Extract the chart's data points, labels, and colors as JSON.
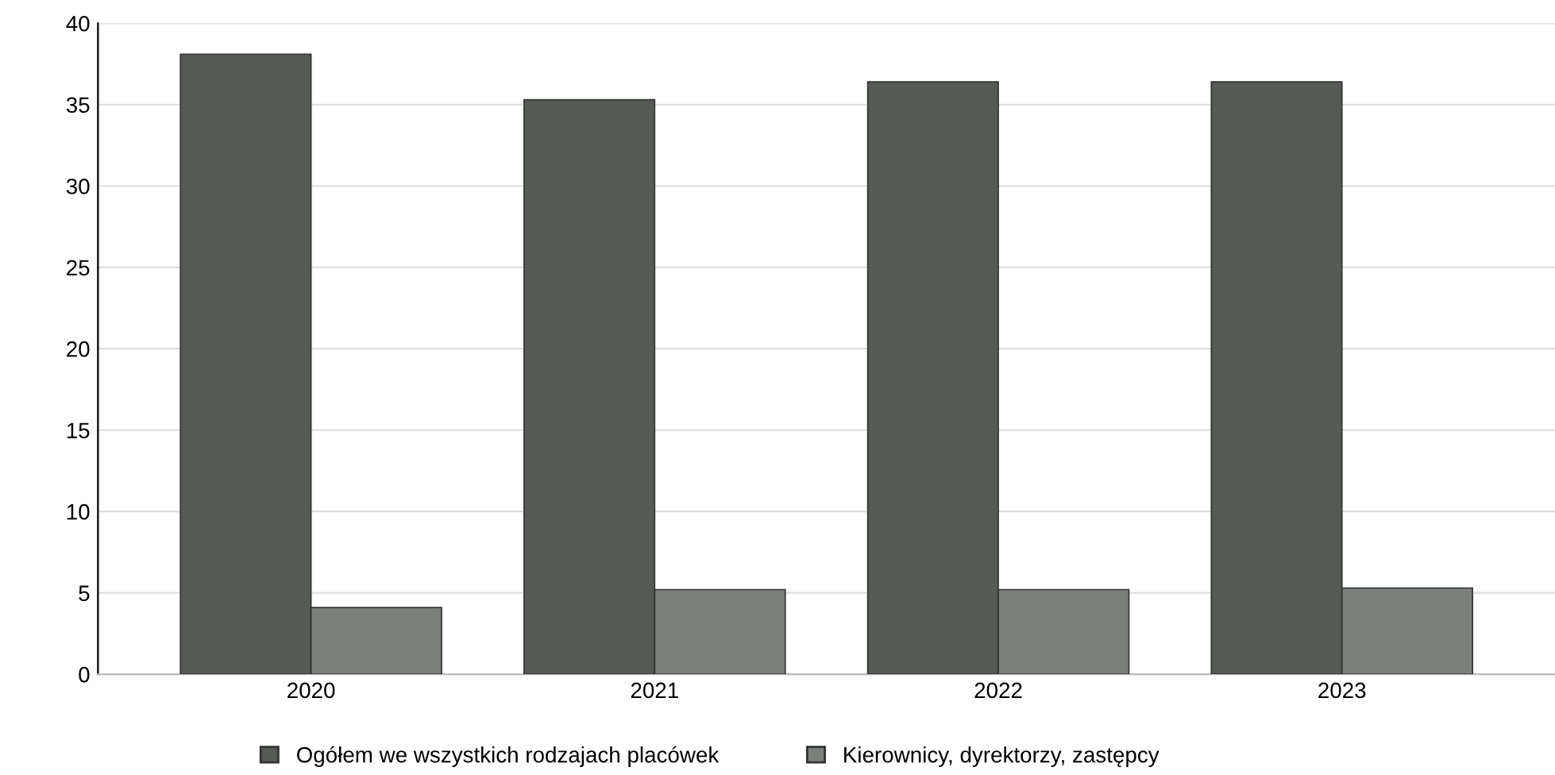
{
  "chart_data": {
    "type": "bar",
    "categories": [
      "2020",
      "2021",
      "2022",
      "2023"
    ],
    "series": [
      {
        "name": "Ogółem we wszystkich rodzajach placówek",
        "color": "#555a55",
        "values": [
          38.1,
          35.3,
          36.4,
          36.4
        ]
      },
      {
        "name": "Kierownicy, dyrektorzy, zastępcy",
        "color": "#7c807c",
        "values": [
          4.1,
          5.2,
          5.2,
          5.3
        ]
      }
    ],
    "ylim": [
      0,
      40
    ],
    "yticks": [
      0,
      5,
      10,
      15,
      20,
      25,
      30,
      35,
      40
    ],
    "grid": "y",
    "legend": "bottom"
  }
}
